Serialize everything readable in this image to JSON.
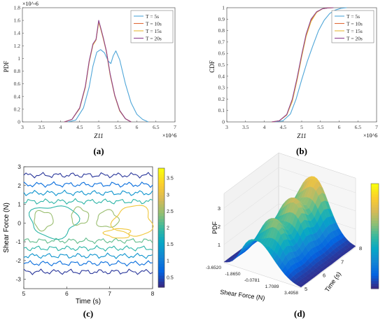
{
  "panels": [
    {
      "id": "a",
      "caption": "(a)"
    },
    {
      "id": "b",
      "caption": "(b)"
    },
    {
      "id": "c",
      "caption": "(c)"
    },
    {
      "id": "d",
      "caption": "(d)"
    }
  ],
  "chart_data": [
    {
      "id": "a",
      "type": "line",
      "ylabel": "PDF",
      "xlabel": "Z11",
      "x_exponent": "×10^6",
      "y_exponent": "×10^-6",
      "xlim": [
        3,
        7
      ],
      "ylim": [
        0,
        1.8
      ],
      "xticks": [
        "3",
        "3.5",
        "4",
        "4.5",
        "5",
        "5.5",
        "6",
        "6.5",
        "7"
      ],
      "yticks": [
        "0",
        "0.2",
        "0.4",
        "0.6",
        "0.8",
        "1",
        "1.2",
        "1.4",
        "1.6",
        "1.8"
      ],
      "legend": "top-right",
      "series": [
        {
          "name": "T = 5s",
          "color": "#4fa6d8",
          "x": [
            4.2,
            4.4,
            4.6,
            4.75,
            4.85,
            4.95,
            5.05,
            5.15,
            5.25,
            5.32,
            5.38,
            5.45,
            5.55,
            5.7,
            5.85,
            6.0,
            6.15,
            6.3
          ],
          "y": [
            0.0,
            0.03,
            0.22,
            0.55,
            0.88,
            1.1,
            1.14,
            1.09,
            0.96,
            0.92,
            1.04,
            1.12,
            0.98,
            0.6,
            0.3,
            0.12,
            0.04,
            0.0
          ]
        },
        {
          "name": "T = 10s",
          "color": "#e06b3a",
          "x": [
            4.1,
            4.3,
            4.5,
            4.65,
            4.75,
            4.85,
            4.93,
            5.0,
            5.05,
            5.12,
            5.2,
            5.3,
            5.42,
            5.55,
            5.7,
            5.85
          ],
          "y": [
            0.0,
            0.04,
            0.22,
            0.55,
            0.95,
            1.22,
            1.3,
            1.58,
            1.48,
            1.32,
            1.12,
            0.75,
            0.42,
            0.18,
            0.05,
            0.0
          ]
        },
        {
          "name": "T = 15s",
          "color": "#e8b83a",
          "x": [
            4.1,
            4.3,
            4.5,
            4.65,
            4.75,
            4.85,
            4.93,
            5.0,
            5.05,
            5.12,
            5.2,
            5.3,
            5.42,
            5.55,
            5.7,
            5.85
          ],
          "y": [
            0.0,
            0.04,
            0.21,
            0.54,
            0.94,
            1.21,
            1.29,
            1.57,
            1.47,
            1.31,
            1.11,
            0.74,
            0.41,
            0.17,
            0.05,
            0.0
          ]
        },
        {
          "name": "T = 20s",
          "color": "#8c3f8f",
          "x": [
            4.1,
            4.3,
            4.5,
            4.65,
            4.75,
            4.85,
            4.93,
            5.0,
            5.05,
            5.12,
            5.2,
            5.3,
            5.42,
            5.55,
            5.7,
            5.85
          ],
          "y": [
            0.0,
            0.04,
            0.22,
            0.56,
            0.96,
            1.23,
            1.3,
            1.6,
            1.49,
            1.33,
            1.12,
            0.76,
            0.42,
            0.18,
            0.05,
            0.0
          ]
        }
      ]
    },
    {
      "id": "b",
      "type": "line",
      "ylabel": "CDF",
      "xlabel": "Z11",
      "x_exponent": "×10^6",
      "xlim": [
        3,
        7
      ],
      "ylim": [
        0,
        1
      ],
      "xticks": [
        "3",
        "3.5",
        "4",
        "4.5",
        "5",
        "5.5",
        "6",
        "6.5",
        "7"
      ],
      "yticks": [
        "0",
        "0.1",
        "0.2",
        "0.3",
        "0.4",
        "0.5",
        "0.6",
        "0.7",
        "0.8",
        "0.9",
        "1"
      ],
      "legend": "right",
      "series": [
        {
          "name": "T = 5s",
          "color": "#4fa6d8",
          "x": [
            4.3,
            4.5,
            4.7,
            4.85,
            5.0,
            5.15,
            5.3,
            5.45,
            5.6,
            5.75,
            5.9,
            6.05,
            6.2
          ],
          "y": [
            0.0,
            0.01,
            0.07,
            0.2,
            0.37,
            0.53,
            0.67,
            0.8,
            0.89,
            0.95,
            0.98,
            0.995,
            1.0
          ]
        },
        {
          "name": "T = 10s",
          "color": "#e06b3a",
          "x": [
            4.2,
            4.4,
            4.6,
            4.75,
            4.88,
            5.0,
            5.12,
            5.25,
            5.4,
            5.55,
            5.7,
            5.85
          ],
          "y": [
            0.0,
            0.01,
            0.06,
            0.19,
            0.38,
            0.58,
            0.76,
            0.89,
            0.96,
            0.99,
            0.998,
            1.0
          ]
        },
        {
          "name": "T = 15s",
          "color": "#e8b83a",
          "x": [
            4.2,
            4.4,
            4.6,
            4.75,
            4.88,
            5.0,
            5.12,
            5.25,
            5.4,
            5.55,
            5.7,
            5.85
          ],
          "y": [
            0.0,
            0.01,
            0.06,
            0.18,
            0.37,
            0.57,
            0.75,
            0.88,
            0.96,
            0.99,
            0.998,
            1.0
          ]
        },
        {
          "name": "T = 20s",
          "color": "#8c3f8f",
          "x": [
            4.2,
            4.4,
            4.6,
            4.75,
            4.88,
            5.0,
            5.12,
            5.25,
            5.4,
            5.55,
            5.7,
            5.85
          ],
          "y": [
            0.0,
            0.01,
            0.065,
            0.2,
            0.39,
            0.59,
            0.77,
            0.9,
            0.965,
            0.99,
            0.998,
            1.0
          ]
        }
      ]
    },
    {
      "id": "c",
      "type": "heatmap",
      "subtype": "contour",
      "ylabel": "Shear Force (N)",
      "xlabel": "Time (s)",
      "xlim": [
        5,
        8
      ],
      "ylim": [
        -3.5,
        3
      ],
      "xticks": [
        "5",
        "6",
        "7",
        "8"
      ],
      "yticks": [
        "-3",
        "-2",
        "-1",
        "0",
        "1",
        "2",
        "3"
      ],
      "colorbar_ticks": [
        "0.5",
        "1",
        "1.5",
        "2",
        "2.5",
        "3",
        "3.5"
      ],
      "colorbar_range": [
        0.2,
        3.8
      ],
      "levels": [
        {
          "y": 2.55,
          "value": 0.3
        },
        {
          "y": 2.05,
          "value": 0.8
        },
        {
          "y": 1.6,
          "value": 1.3
        },
        {
          "y": 1.15,
          "value": 1.9
        },
        {
          "y": -0.95,
          "value": 2.2
        },
        {
          "y": -1.35,
          "value": 1.9
        },
        {
          "y": -1.75,
          "value": 1.3
        },
        {
          "y": -2.15,
          "value": 0.8
        },
        {
          "y": -2.6,
          "value": 0.3
        }
      ],
      "inner_contours": [
        {
          "value": 1.9,
          "cx": 5.7,
          "cy": 0.1,
          "rx": 0.55,
          "ry": 0.85
        },
        {
          "value": 2.5,
          "cx": 5.45,
          "cy": 0.15,
          "rx": 0.22,
          "ry": 0.5
        },
        {
          "value": 2.5,
          "cx": 6.3,
          "cy": 0.35,
          "rx": 0.2,
          "ry": 0.45
        },
        {
          "value": 2.5,
          "cx": 6.95,
          "cy": 0.2,
          "rx": 0.25,
          "ry": 0.45
        },
        {
          "value": 3.2,
          "cx": 7.55,
          "cy": 0.1,
          "rx": 0.45,
          "ry": 0.8
        },
        {
          "value": 3.2,
          "cx": 7.2,
          "cy": -0.55,
          "rx": 0.3,
          "ry": 0.25
        }
      ]
    },
    {
      "id": "d",
      "type": "area",
      "subtype": "surface-3d",
      "zlabel": "PDF",
      "xlabel": "Shear Force (N)",
      "ylabel": "Time (s)",
      "xticks": [
        "-3.6520",
        "-1.8650",
        "-0.0781",
        "1.7089",
        "3.4958"
      ],
      "yticks": [
        "5",
        "6",
        "7",
        "8"
      ],
      "zticks": [
        "1",
        "2",
        "3"
      ],
      "zlim": [
        0,
        3.8
      ],
      "colorbar_range": [
        0,
        3.8
      ]
    }
  ]
}
